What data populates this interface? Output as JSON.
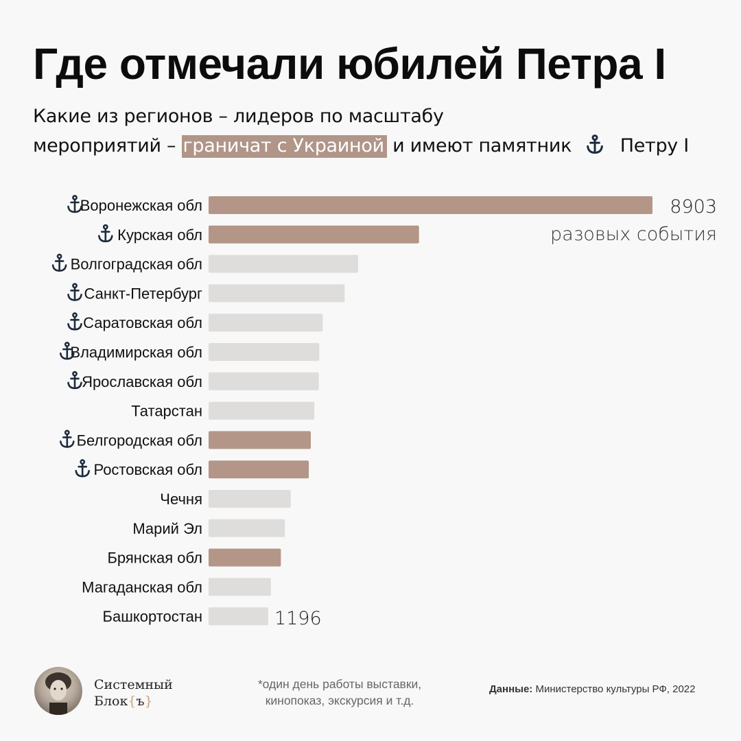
{
  "title": "Где отмечали юбилей Петра I",
  "subtitle": {
    "line1": "Какие из регионов – лидеров по масштабу",
    "line2_prefix": "мероприятий –",
    "highlight": "граничат с Украиной",
    "line2_mid": "и имеют памятник",
    "line2_suffix": "Петру I"
  },
  "colors": {
    "border": "#b39688",
    "other": "#dedddb",
    "anchor": "#1e2b3e"
  },
  "chart_data": {
    "type": "bar",
    "orientation": "horizontal",
    "categories": [
      "Воронежская обл",
      "Курская обл",
      "Волгоградская обл",
      "Санкт-Петербург",
      "Саратовская обл",
      "Владимирская обл",
      "Ярославская обл",
      "Татарстан",
      "Белгородская обл",
      "Ростовская обл",
      "Чечня",
      "Марий Эл",
      "Брянская обл",
      "Магаданская обл",
      "Башкортостан"
    ],
    "values": [
      8903,
      4220,
      3000,
      2730,
      2290,
      2220,
      2210,
      2120,
      2050,
      2010,
      1650,
      1530,
      1450,
      1250,
      1196
    ],
    "border_ukraine": [
      true,
      true,
      false,
      false,
      false,
      false,
      false,
      false,
      true,
      true,
      false,
      false,
      true,
      false,
      false
    ],
    "monument": [
      true,
      true,
      true,
      true,
      true,
      true,
      true,
      false,
      true,
      true,
      false,
      false,
      false,
      false,
      false
    ],
    "value_labels": {
      "max_value": "8903",
      "max_note": "разовых события",
      "min_value": "1196"
    }
  },
  "footer": {
    "brand_line1": "Системный",
    "brand_line2": "Блок",
    "brand_brace_open": "{",
    "brand_mark": "ъ",
    "brand_brace_close": "}",
    "footnote_line1": "*один день работы выставки,",
    "footnote_line2": "кинопоказ, экскурсия и т.д.",
    "source_label": "Данные:",
    "source_text": "Министерство культуры РФ, 2022"
  },
  "icons": {
    "monument": "anchor-icon"
  }
}
